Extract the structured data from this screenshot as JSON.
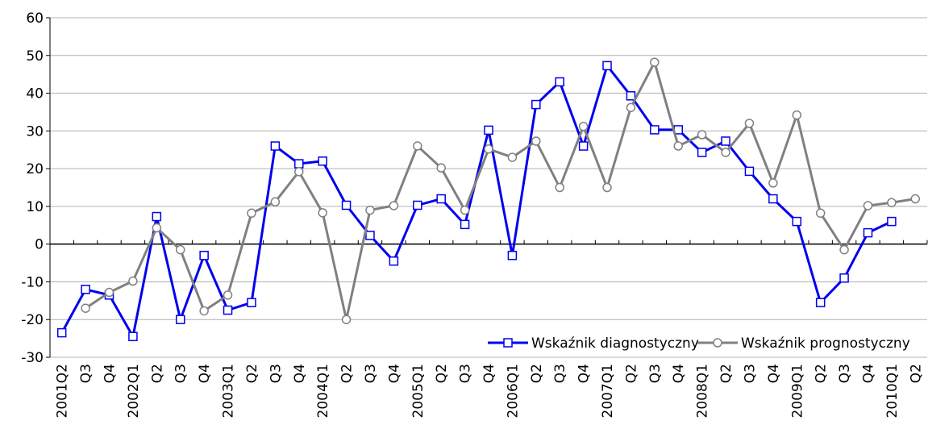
{
  "chart_data": {
    "type": "line",
    "categories": [
      "2001Q2",
      "Q3",
      "Q4",
      "2002Q1",
      "Q2",
      "Q3",
      "Q4",
      "2003Q1",
      "Q2",
      "Q3",
      "Q4",
      "2004Q1",
      "Q2",
      "Q3",
      "Q4",
      "2005Q1",
      "Q2",
      "Q3",
      "Q4",
      "2006Q1",
      "Q2",
      "Q3",
      "Q4",
      "2007Q1",
      "Q2",
      "Q3",
      "Q4",
      "2008Q1",
      "Q2",
      "Q3",
      "Q4",
      "2009Q1",
      "Q2",
      "Q3",
      "Q4",
      "2010Q1",
      "Q2"
    ],
    "series": [
      {
        "name": "Wskaźnik diagnostyczny",
        "color": "#0000ee",
        "marker": "square",
        "values": [
          -23.5,
          -12,
          -13.5,
          -24.5,
          7.3,
          -20,
          -3,
          -17.5,
          -15.5,
          26,
          21.3,
          22,
          10.3,
          2.3,
          -4.5,
          10.3,
          12,
          5.2,
          30.2,
          -3,
          37,
          43,
          26,
          47.3,
          39.3,
          30.3,
          30.3,
          24.3,
          27.3,
          19.3,
          12,
          6,
          -15.5,
          -9,
          3,
          6,
          null
        ]
      },
      {
        "name": "Wskaźnik prognostyczny",
        "color": "#808080",
        "marker": "circle",
        "values": [
          null,
          -17,
          -12.8,
          -9.8,
          4.3,
          -1.5,
          -17.7,
          -13.5,
          8.2,
          11.2,
          19.2,
          8.3,
          -20,
          9,
          10.2,
          26,
          20.2,
          9,
          25.2,
          23,
          27.3,
          15,
          31.2,
          15,
          36.2,
          48.2,
          26,
          29,
          24.3,
          32,
          16.2,
          34.2,
          8.2,
          -1.5,
          10.2,
          11,
          12
        ]
      }
    ],
    "ylim": [
      -30,
      60
    ],
    "yticks": [
      -30,
      -20,
      -10,
      0,
      10,
      20,
      30,
      40,
      50,
      60
    ],
    "grid": true,
    "legend": "lower right"
  }
}
